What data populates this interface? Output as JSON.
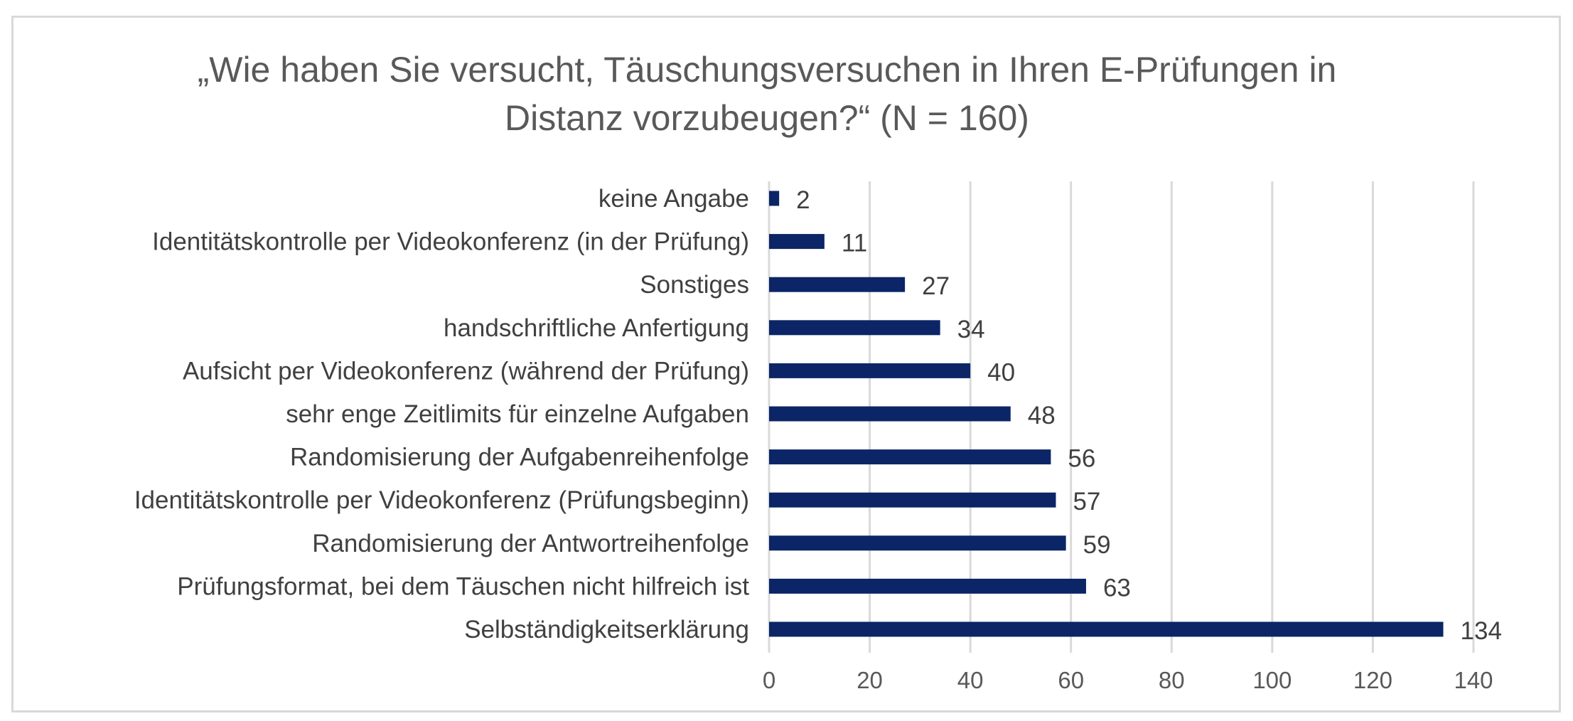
{
  "chart_data": {
    "type": "bar",
    "orientation": "horizontal",
    "title": "„Wie haben Sie versucht, Täuschungsversuchen in Ihren E-Prüfungen in Distanz vorzubeugen?“ (N = 160)",
    "title_lines": [
      "„Wie haben Sie versucht, Täuschungsversuchen in Ihren E-Prüfungen in",
      "Distanz vorzubeugen?“ (N = 160)"
    ],
    "categories": [
      "keine Angabe",
      "Identitätskontrolle per Videokonferenz (in der Prüfung)",
      "Sonstiges",
      "handschriftliche Anfertigung",
      "Aufsicht per Videokonferenz (während der Prüfung)",
      "sehr enge Zeitlimits für einzelne Aufgaben",
      "Randomisierung der Aufgabenreihenfolge",
      "Identitätskontrolle per Videokonferenz (Prüfungsbeginn)",
      "Randomisierung der Antwortreihenfolge",
      "Prüfungsformat, bei dem Täuschen nicht hilfreich ist",
      "Selbständigkeitserklärung"
    ],
    "values": [
      2,
      11,
      27,
      34,
      40,
      48,
      56,
      57,
      59,
      63,
      134
    ],
    "data_labels": [
      "2",
      "11",
      "27",
      "34",
      "40",
      "48",
      "56",
      "57",
      "59",
      "63",
      "134"
    ],
    "xlim": [
      0,
      140
    ],
    "x_ticks": [
      0,
      20,
      40,
      60,
      80,
      100,
      120,
      140
    ],
    "x_tick_labels": [
      "0",
      "20",
      "40",
      "60",
      "80",
      "100",
      "120",
      "140"
    ],
    "xlabel": "",
    "ylabel": "",
    "grid": true,
    "legend": "none",
    "colors": {
      "bar": "#0b2566",
      "grid": "#d9d9d9",
      "text": "#404040",
      "title": "#595959"
    }
  }
}
